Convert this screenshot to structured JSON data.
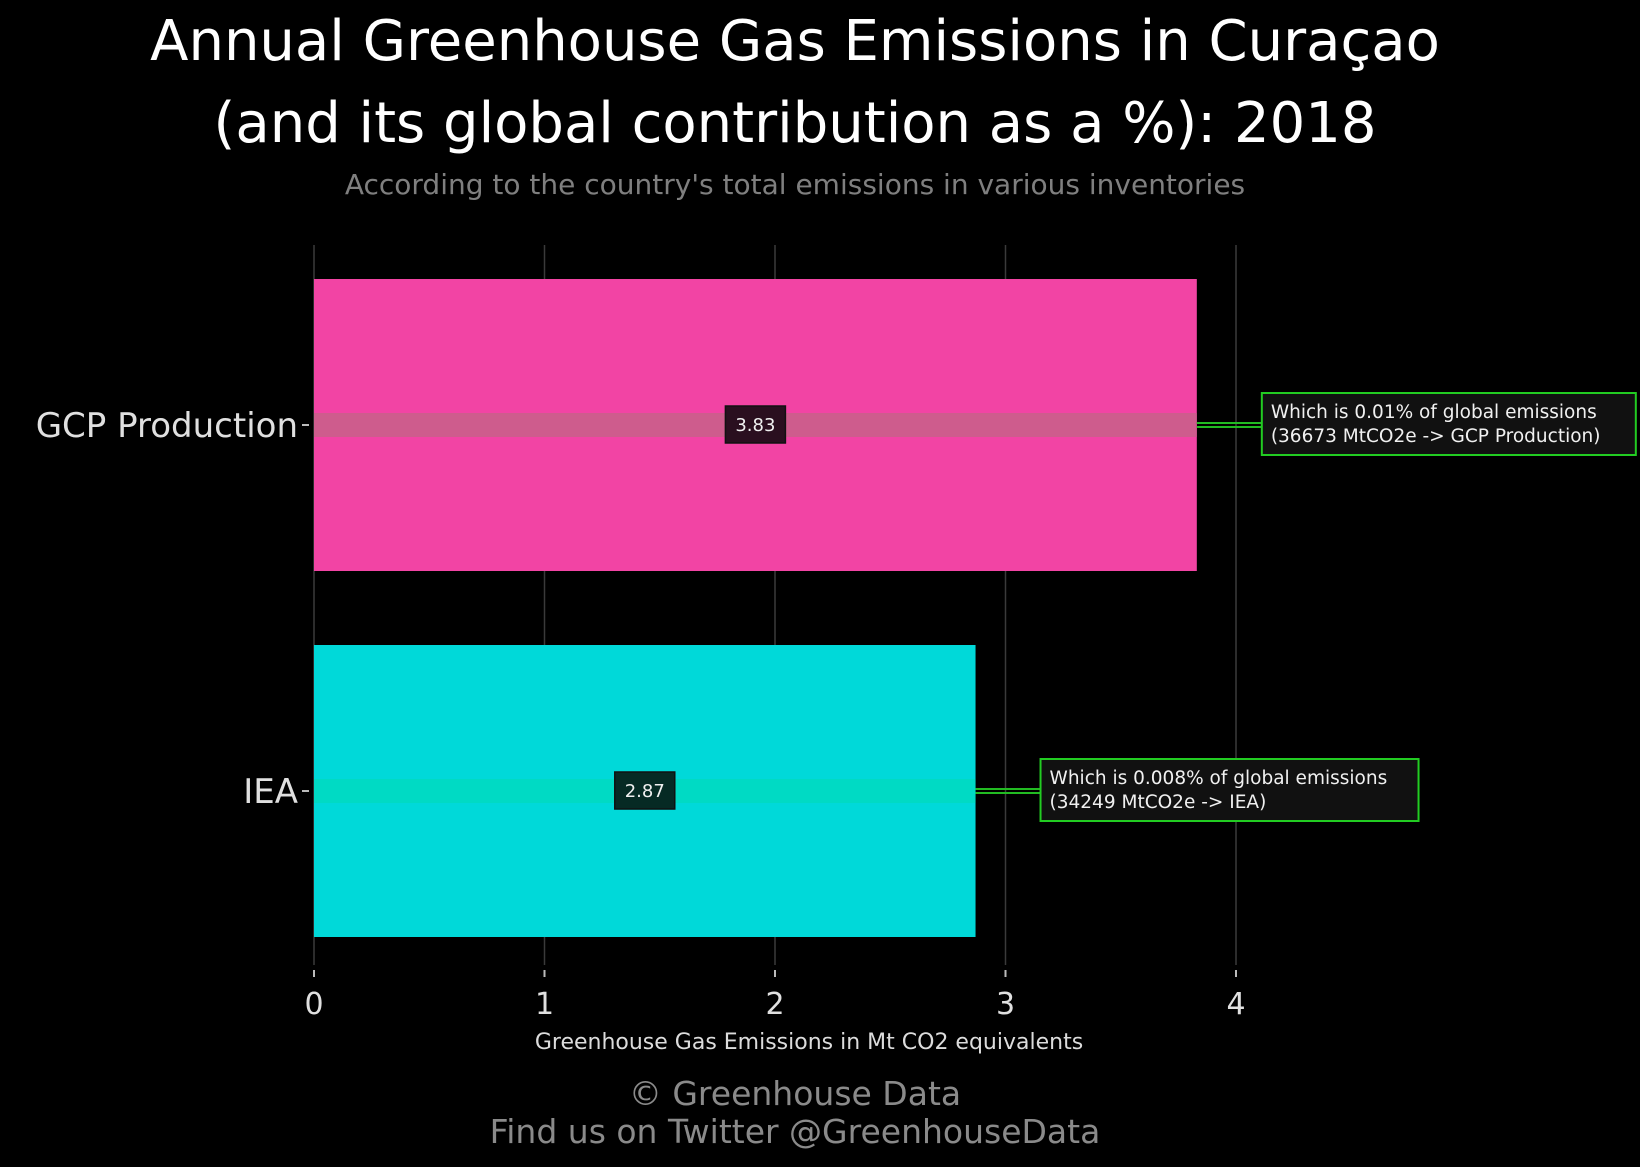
{
  "title_line1": "Annual Greenhouse Gas Emissions in Curaçao",
  "title_line2": "(and its global contribution as a %): 2018",
  "subtitle": "According to the country's total emissions in various inventories",
  "footer_line1": "© Greenhouse Data",
  "footer_line2": "Find us on Twitter @GreenhouseData",
  "chart_data": {
    "type": "bar",
    "orientation": "horizontal",
    "categories": [
      "GCP Production",
      "IEA"
    ],
    "values": [
      3.83,
      2.87
    ],
    "value_labels": [
      "3.83",
      "2.87"
    ],
    "colors": [
      "#f244a4",
      "#00d9d9"
    ],
    "annotations": [
      [
        "Which is 0.01% of global emissions",
        "(36673 MtCO2e -> GCP Production)"
      ],
      [
        "Which is 0.008% of global emissions",
        "(34249 MtCO2e -> IEA)"
      ]
    ],
    "xlabel": "Greenhouse Gas Emissions in Mt CO2 equivalents",
    "x_ticks": [
      0,
      1,
      2,
      3,
      4
    ],
    "x_tick_labels": [
      "0",
      "1",
      "2",
      "3",
      "4"
    ],
    "xlim": [
      0,
      4
    ],
    "grid": "vertical",
    "annotation_border_color": "#22cc22",
    "background": "#000000"
  }
}
